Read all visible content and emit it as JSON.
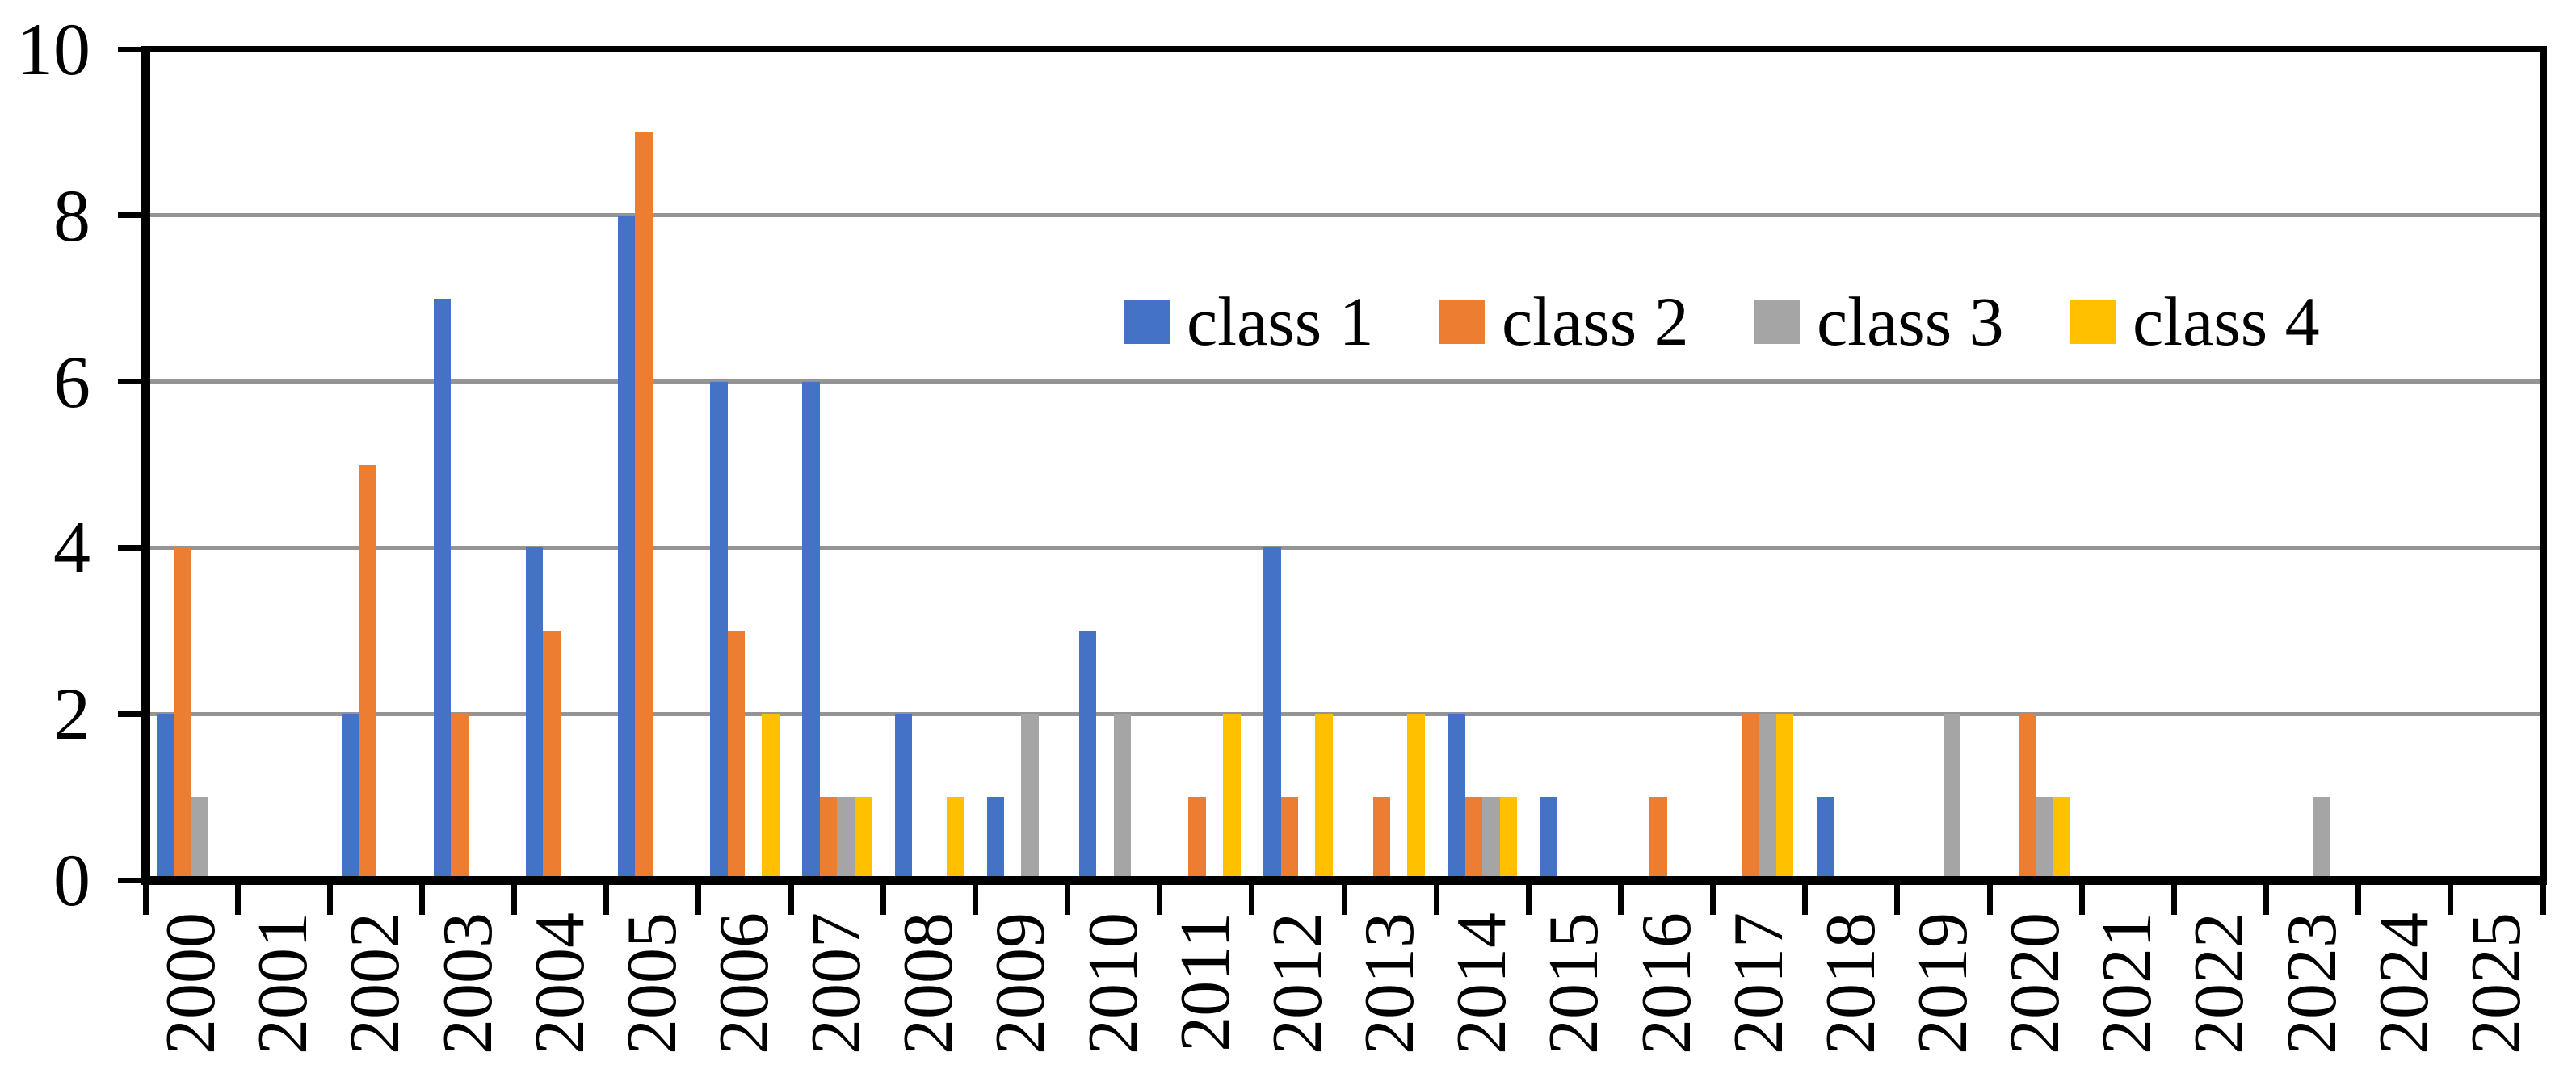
{
  "chart_data": {
    "type": "bar",
    "title": "",
    "xlabel": "",
    "ylabel": "",
    "categories": [
      "2000",
      "2001",
      "2002",
      "2003",
      "2004",
      "2005",
      "2006",
      "2007",
      "2008",
      "2009",
      "2010",
      "2011",
      "2012",
      "2013",
      "2014",
      "2015",
      "2016",
      "2017",
      "2018",
      "2019",
      "2020",
      "2021",
      "2022",
      "2023",
      "2024",
      "2025"
    ],
    "series": [
      {
        "name": "class 1",
        "color": "#4472C4",
        "values": [
          2,
          0,
          2,
          7,
          4,
          8,
          6,
          6,
          2,
          1,
          3,
          0,
          4,
          0,
          2,
          1,
          0,
          0,
          1,
          0,
          0,
          0,
          0,
          0,
          0,
          0
        ]
      },
      {
        "name": "class 2",
        "color": "#ED7D31",
        "values": [
          4,
          0,
          5,
          2,
          3,
          9,
          3,
          1,
          0,
          0,
          0,
          1,
          1,
          1,
          1,
          0,
          1,
          2,
          0,
          0,
          2,
          0,
          0,
          0,
          0,
          0
        ]
      },
      {
        "name": "class 3",
        "color": "#A5A5A5",
        "values": [
          1,
          0,
          0,
          0,
          0,
          0,
          0,
          1,
          0,
          2,
          2,
          0,
          0,
          0,
          1,
          0,
          0,
          2,
          0,
          2,
          1,
          0,
          0,
          1,
          0,
          0
        ]
      },
      {
        "name": "class 4",
        "color": "#FFC000",
        "values": [
          0,
          0,
          0,
          0,
          0,
          0,
          2,
          1,
          1,
          0,
          0,
          2,
          2,
          2,
          1,
          0,
          0,
          2,
          0,
          0,
          1,
          0,
          0,
          0,
          0,
          0
        ]
      }
    ],
    "ylim": [
      0,
      10
    ],
    "y_ticks": [
      0,
      2,
      4,
      6,
      8,
      10
    ],
    "gridlines_at": [
      2,
      4,
      6,
      8
    ],
    "grid": true,
    "legend_position": "inside-upper-center",
    "bar_grouping": "grouped"
  },
  "legend": {
    "items": [
      {
        "label": "class 1",
        "color": "#4472C4"
      },
      {
        "label": "class 2",
        "color": "#ED7D31"
      },
      {
        "label": "class 3",
        "color": "#A5A5A5"
      },
      {
        "label": "class 4",
        "color": "#FFC000"
      }
    ]
  },
  "colors": {
    "background": "#FFFFFF",
    "axis": "#000000",
    "gridline": "#949494",
    "text": "#000000"
  }
}
